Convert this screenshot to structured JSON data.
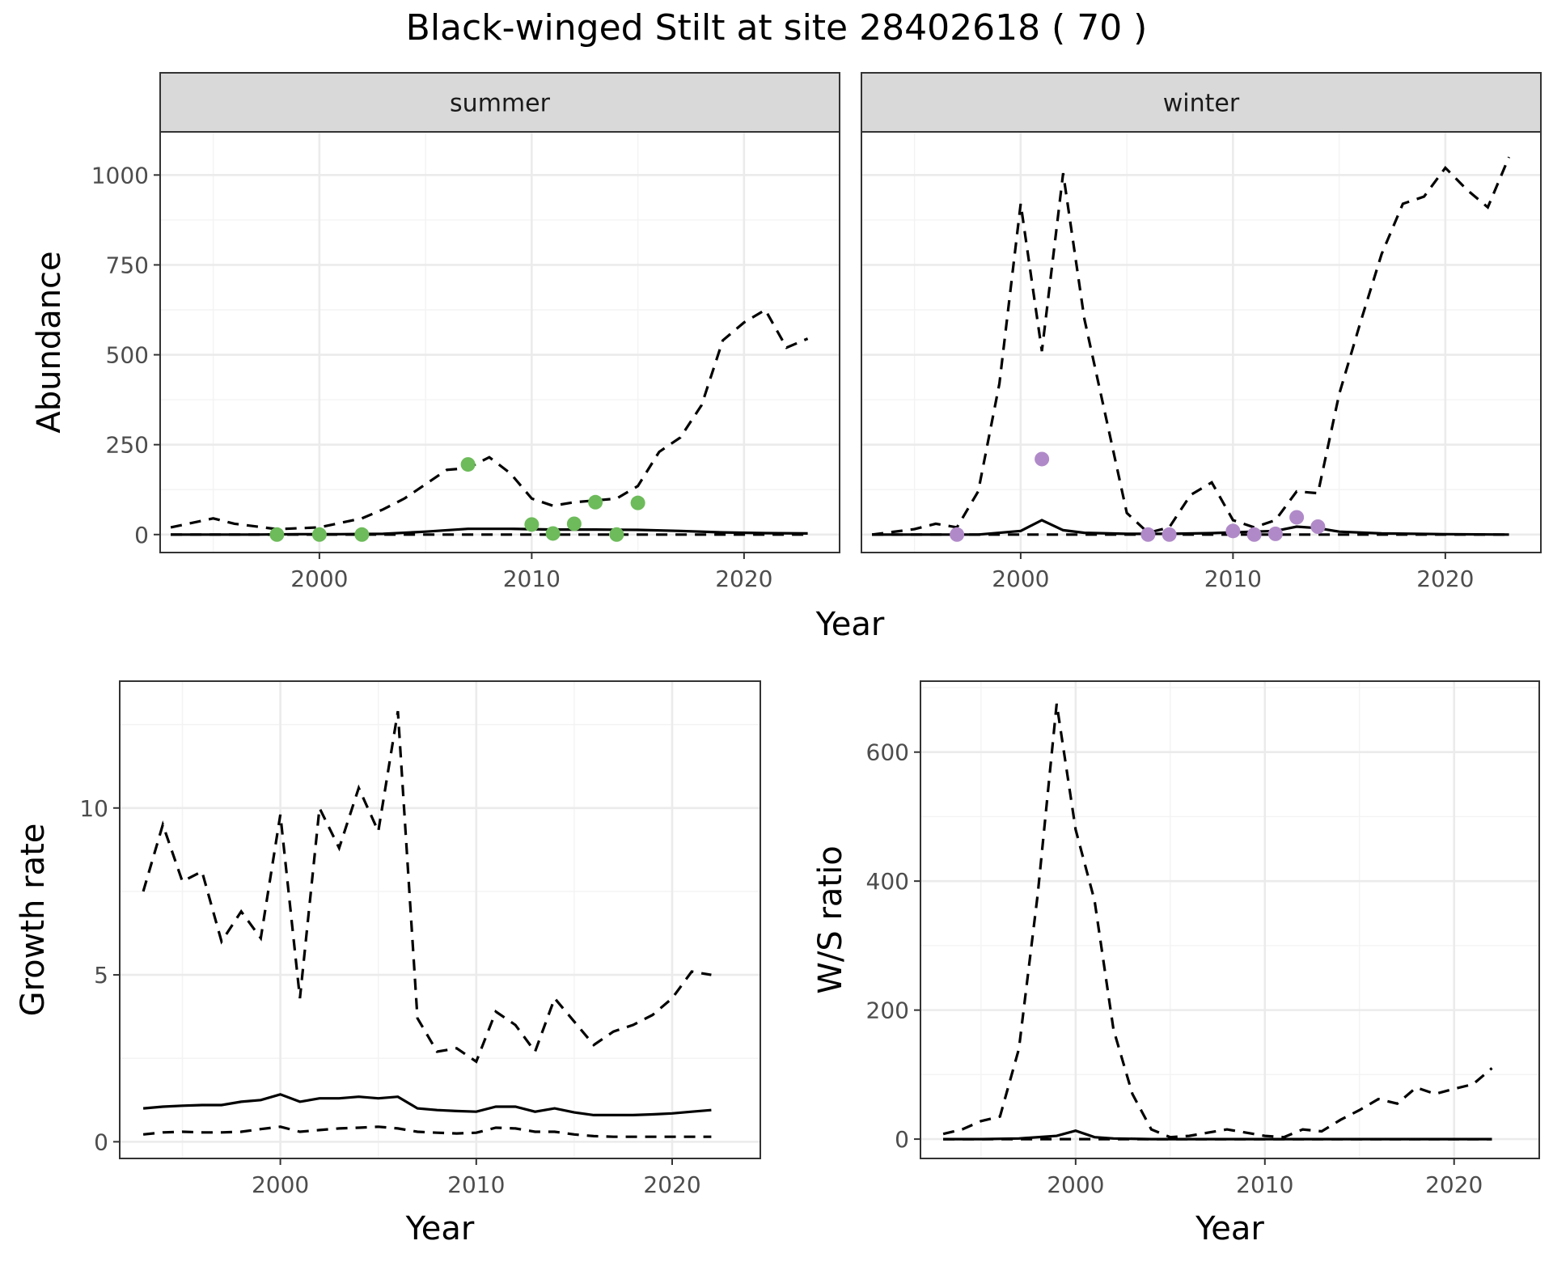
{
  "title": "Black-winged Stilt at site 28402618 ( 70 )",
  "chart_data": [
    {
      "type": "line",
      "facet": "summer",
      "xlabel": "Year",
      "ylabel": "Abundance",
      "xlim": [
        1992.5,
        2024.5
      ],
      "ylim": [
        -50,
        1120
      ],
      "xticks": [
        2000,
        2010,
        2020
      ],
      "yticks": [
        0,
        250,
        500,
        750,
        1000
      ],
      "grid": true,
      "point_color": "#6dbb5a",
      "series": [
        {
          "style": "solid",
          "x": [
            1993,
            1995,
            1997,
            1999,
            2001,
            2003,
            2005,
            2007,
            2009,
            2011,
            2013,
            2015,
            2017,
            2019,
            2021,
            2023
          ],
          "y": [
            0,
            0,
            0,
            1,
            1,
            2,
            8,
            16,
            16,
            14,
            14,
            13,
            10,
            6,
            4,
            3
          ]
        },
        {
          "style": "dashed-upper",
          "x": [
            1993,
            1995,
            1996,
            1998,
            2000,
            2002,
            2003,
            2004,
            2005,
            2006,
            2007,
            2008,
            2009,
            2010,
            2011,
            2012,
            2013,
            2014,
            2015,
            2016,
            2017,
            2018,
            2019,
            2020,
            2021,
            2022,
            2023
          ],
          "y": [
            20,
            45,
            30,
            15,
            20,
            45,
            70,
            100,
            140,
            180,
            185,
            215,
            170,
            100,
            80,
            90,
            95,
            100,
            135,
            230,
            270,
            360,
            540,
            590,
            625,
            520,
            545
          ]
        },
        {
          "style": "dashed-lower",
          "x": [
            1993,
            2000,
            2005,
            2010,
            2015,
            2020,
            2023
          ],
          "y": [
            0,
            0,
            0,
            0,
            0,
            0,
            0
          ]
        },
        {
          "style": "points",
          "x": [
            1998,
            2000,
            2002,
            2007,
            2010,
            2011,
            2012,
            2013,
            2014,
            2015
          ],
          "y": [
            0,
            0,
            0,
            195,
            28,
            3,
            30,
            90,
            0,
            88
          ]
        }
      ]
    },
    {
      "type": "line",
      "facet": "winter",
      "xlabel": "Year",
      "ylabel": "Abundance",
      "xlim": [
        1992.5,
        2024.5
      ],
      "ylim": [
        -50,
        1120
      ],
      "xticks": [
        2000,
        2010,
        2020
      ],
      "yticks": [
        0,
        250,
        500,
        750,
        1000
      ],
      "grid": true,
      "point_color": "#b08ac8",
      "series": [
        {
          "style": "solid",
          "x": [
            1993,
            1996,
            1998,
            2000,
            2001,
            2002,
            2003,
            2005,
            2007,
            2009,
            2011,
            2012,
            2013,
            2014,
            2015,
            2017,
            2020,
            2023
          ],
          "y": [
            0,
            0,
            0,
            10,
            40,
            12,
            5,
            2,
            2,
            4,
            8,
            10,
            22,
            18,
            8,
            3,
            1,
            0
          ]
        },
        {
          "style": "dashed-upper",
          "x": [
            1993,
            1995,
            1996,
            1997,
            1998,
            1999,
            2000,
            2001,
            2002,
            2003,
            2004,
            2005,
            2006,
            2007,
            2008,
            2009,
            2010,
            2011,
            2012,
            2013,
            2014,
            2015,
            2016,
            2017,
            2018,
            2019,
            2020,
            2021,
            2022,
            2023
          ],
          "y": [
            0,
            15,
            30,
            20,
            120,
            420,
            920,
            510,
            1005,
            600,
            330,
            60,
            5,
            20,
            110,
            145,
            40,
            20,
            40,
            120,
            115,
            390,
            590,
            780,
            920,
            940,
            1020,
            960,
            910,
            1050
          ]
        },
        {
          "style": "dashed-lower",
          "x": [
            1993,
            2000,
            2005,
            2010,
            2015,
            2020,
            2023
          ],
          "y": [
            0,
            0,
            0,
            0,
            0,
            0,
            0
          ]
        },
        {
          "style": "points",
          "x": [
            1997,
            2001,
            2006,
            2007,
            2010,
            2011,
            2012,
            2013,
            2014
          ],
          "y": [
            0,
            210,
            0,
            0,
            10,
            0,
            2,
            48,
            22
          ]
        }
      ]
    },
    {
      "type": "line",
      "xlabel": "Year",
      "ylabel": "Growth rate",
      "xlim": [
        1991.8,
        2024.5
      ],
      "ylim": [
        -0.5,
        13.8
      ],
      "xticks": [
        2000,
        2010,
        2020
      ],
      "yticks": [
        0,
        5,
        10
      ],
      "grid": true,
      "series": [
        {
          "style": "solid",
          "x": [
            1993,
            1994,
            1995,
            1996,
            1997,
            1998,
            1999,
            2000,
            2001,
            2002,
            2003,
            2004,
            2005,
            2006,
            2007,
            2008,
            2009,
            2010,
            2011,
            2012,
            2013,
            2014,
            2015,
            2016,
            2017,
            2018,
            2019,
            2020,
            2021,
            2022
          ],
          "y": [
            1.0,
            1.05,
            1.08,
            1.1,
            1.1,
            1.2,
            1.25,
            1.42,
            1.2,
            1.3,
            1.3,
            1.35,
            1.3,
            1.35,
            1.0,
            0.95,
            0.92,
            0.9,
            1.05,
            1.05,
            0.9,
            1.0,
            0.88,
            0.8,
            0.8,
            0.8,
            0.82,
            0.85,
            0.9,
            0.95
          ]
        },
        {
          "style": "dashed-upper",
          "x": [
            1993,
            1994,
            1995,
            1996,
            1997,
            1998,
            1999,
            2000,
            2001,
            2002,
            2003,
            2004,
            2005,
            2006,
            2007,
            2008,
            2009,
            2010,
            2011,
            2012,
            2013,
            2014,
            2015,
            2016,
            2017,
            2018,
            2019,
            2020,
            2021,
            2022
          ],
          "y": [
            7.5,
            9.5,
            7.8,
            8.1,
            6.0,
            6.9,
            6.1,
            9.8,
            4.3,
            10.0,
            8.8,
            10.6,
            9.3,
            12.9,
            3.7,
            2.7,
            2.8,
            2.4,
            3.9,
            3.5,
            2.7,
            4.3,
            3.6,
            2.9,
            3.3,
            3.5,
            3.8,
            4.3,
            5.1,
            5.0
          ]
        },
        {
          "style": "dashed-lower",
          "x": [
            1993,
            1994,
            1995,
            1996,
            1997,
            1998,
            1999,
            2000,
            2001,
            2002,
            2003,
            2004,
            2005,
            2006,
            2007,
            2008,
            2009,
            2010,
            2011,
            2012,
            2013,
            2014,
            2015,
            2016,
            2017,
            2018,
            2019,
            2020,
            2021,
            2022
          ],
          "y": [
            0.22,
            0.28,
            0.3,
            0.28,
            0.28,
            0.3,
            0.38,
            0.45,
            0.3,
            0.35,
            0.4,
            0.42,
            0.45,
            0.4,
            0.3,
            0.27,
            0.25,
            0.27,
            0.42,
            0.4,
            0.3,
            0.3,
            0.22,
            0.17,
            0.15,
            0.15,
            0.15,
            0.15,
            0.15,
            0.15
          ]
        }
      ]
    },
    {
      "type": "line",
      "xlabel": "Year",
      "ylabel": "W/S ratio",
      "xlim": [
        1991.8,
        2024.5
      ],
      "ylim": [
        -30,
        710
      ],
      "xticks": [
        2000,
        2010,
        2020
      ],
      "yticks": [
        0,
        200,
        400,
        600
      ],
      "grid": true,
      "series": [
        {
          "style": "solid",
          "x": [
            1993,
            1995,
            1997,
            1999,
            2000,
            2001,
            2002,
            2004,
            2006,
            2010,
            2015,
            2020,
            2022
          ],
          "y": [
            0,
            0,
            1,
            5,
            13,
            3,
            1,
            0,
            0,
            0,
            0,
            0,
            0
          ]
        },
        {
          "style": "dashed-upper",
          "x": [
            1993,
            1994,
            1995,
            1996,
            1997,
            1998,
            1999,
            2000,
            2001,
            2002,
            2003,
            2004,
            2005,
            2006,
            2007,
            2008,
            2009,
            2010,
            2011,
            2012,
            2013,
            2014,
            2015,
            2016,
            2017,
            2018,
            2019,
            2020,
            2021,
            2022
          ],
          "y": [
            8,
            15,
            28,
            35,
            140,
            380,
            675,
            480,
            370,
            170,
            70,
            15,
            3,
            5,
            10,
            15,
            10,
            5,
            3,
            15,
            12,
            30,
            45,
            62,
            55,
            80,
            70,
            78,
            85,
            110
          ]
        },
        {
          "style": "dashed-lower",
          "x": [
            1993,
            2000,
            2005,
            2010,
            2015,
            2020,
            2022
          ],
          "y": [
            0,
            0,
            0,
            0,
            0,
            0,
            0
          ]
        }
      ]
    }
  ]
}
